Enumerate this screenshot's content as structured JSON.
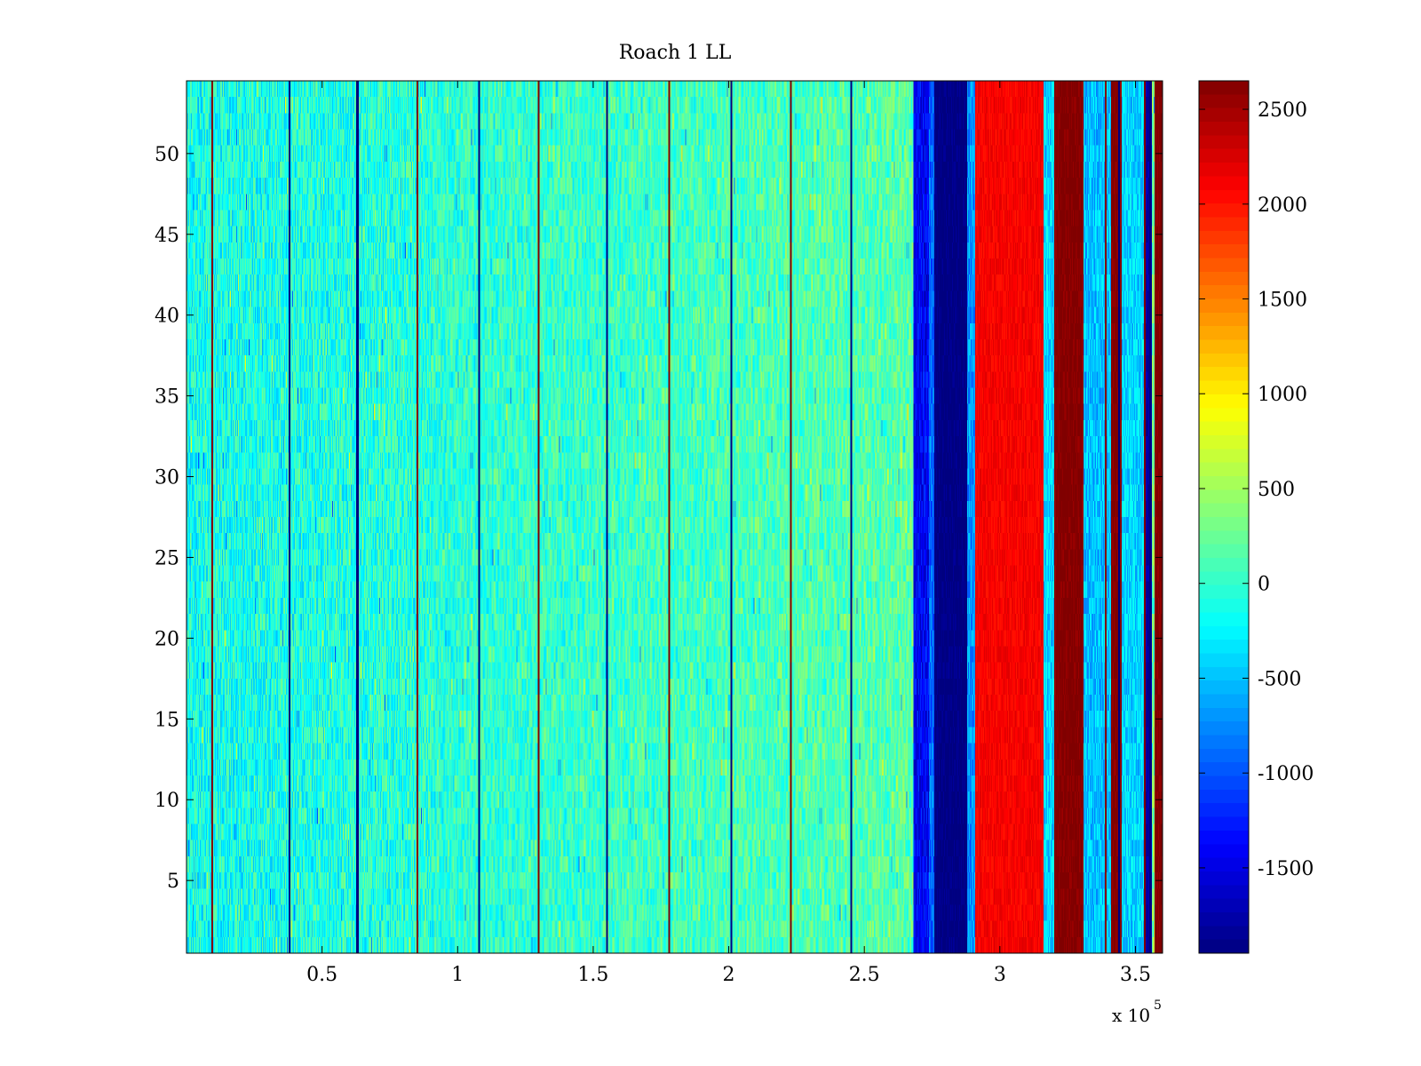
{
  "chart_data": {
    "type": "heatmap",
    "title": "Roach 1 LL",
    "xlabel": "",
    "ylabel": "",
    "x_multiplier": "x 10",
    "x_multiplier_exp": "5",
    "xlim": [
      0,
      3.6
    ],
    "ylim": [
      0.5,
      54.5
    ],
    "xticks": [
      0.5,
      1,
      1.5,
      2,
      2.5,
      3,
      3.5
    ],
    "xtick_labels": [
      "0.5",
      "1",
      "1.5",
      "2",
      "2.5",
      "3",
      "3.5"
    ],
    "yticks": [
      5,
      10,
      15,
      20,
      25,
      30,
      35,
      40,
      45,
      50
    ],
    "ytick_labels": [
      "5",
      "10",
      "15",
      "20",
      "25",
      "30",
      "35",
      "40",
      "45",
      "50"
    ],
    "rows": 54,
    "colormap": "jet",
    "clim": [
      -1950,
      2650
    ],
    "colorbar": {
      "ticks": [
        -1500,
        -1000,
        -500,
        0,
        500,
        1000,
        1500,
        2000,
        2500
      ],
      "tick_labels": [
        "-1500",
        "-1000",
        "-500",
        "0",
        "500",
        "1000",
        "1500",
        "2000",
        "2500"
      ]
    },
    "baseline_value": -150,
    "baseline_drift_per_x": 120,
    "noise_amplitude": 380,
    "bands": [
      {
        "x0": 2.68,
        "x1": 2.74,
        "value": -1400
      },
      {
        "x0": 2.74,
        "x1": 2.76,
        "value": -900
      },
      {
        "x0": 2.76,
        "x1": 2.88,
        "value": -1950
      },
      {
        "x0": 2.88,
        "x1": 2.91,
        "value": -700
      },
      {
        "x0": 2.91,
        "x1": 3.16,
        "value": 2100
      },
      {
        "x0": 3.16,
        "x1": 3.2,
        "value": -400
      },
      {
        "x0": 3.2,
        "x1": 3.31,
        "value": 2650
      },
      {
        "x0": 3.31,
        "x1": 3.41,
        "value": -500
      },
      {
        "x0": 3.41,
        "x1": 3.45,
        "value": 2650
      },
      {
        "x0": 3.45,
        "x1": 3.53,
        "value": -400
      },
      {
        "x0": 3.53,
        "x1": 3.56,
        "value": -1800
      },
      {
        "x0": 3.57,
        "x1": 3.6,
        "value": 2650
      }
    ],
    "stripes": [
      {
        "x": 0.095,
        "value": 2650
      },
      {
        "x": 0.38,
        "value": -1950
      },
      {
        "x": 0.63,
        "value": -1950
      },
      {
        "x": 0.85,
        "value": 2650
      },
      {
        "x": 1.08,
        "value": -1950
      },
      {
        "x": 1.3,
        "value": 2650
      },
      {
        "x": 1.55,
        "value": -1950
      },
      {
        "x": 1.78,
        "value": 2650
      },
      {
        "x": 2.01,
        "value": -1950
      },
      {
        "x": 2.23,
        "value": 2650
      },
      {
        "x": 2.45,
        "value": -1950
      },
      {
        "x": 3.39,
        "value": 2650
      },
      {
        "x": 3.44,
        "value": -1950
      },
      {
        "x": 3.535,
        "value": 2650
      },
      {
        "x": 3.555,
        "value": -1950
      }
    ]
  }
}
